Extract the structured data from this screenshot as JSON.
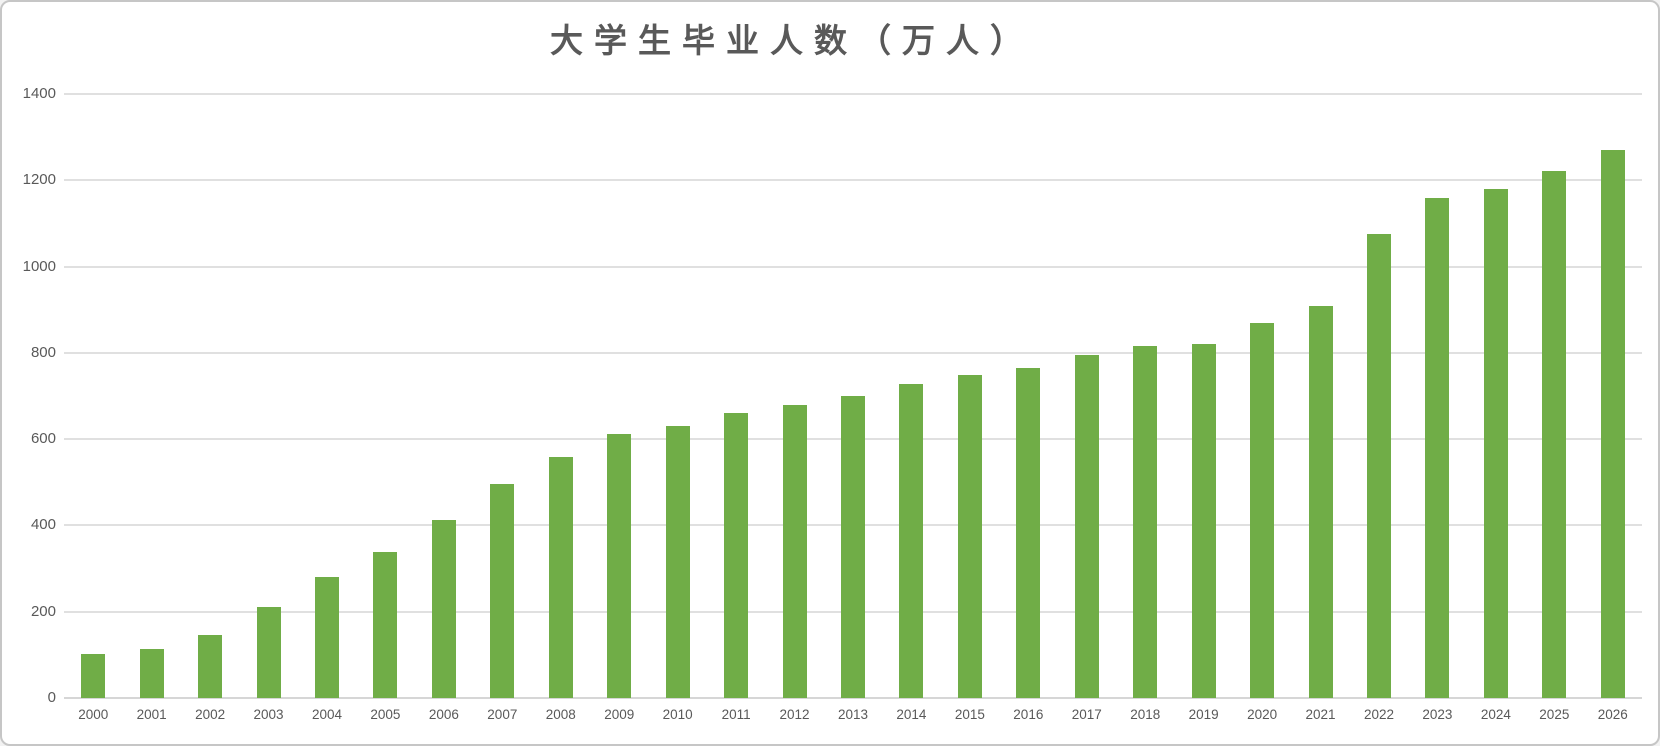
{
  "chart": {
    "title": "大学生毕业人数（万人）",
    "colors": {
      "bar": "#70AD47",
      "title_text": "#595959",
      "axis_label_text": "#595959",
      "gridline": "#E0E0E0",
      "axis_line": "#D6D6D6",
      "frame_border": "#C6C6C6",
      "background": "#FFFFFF"
    }
  },
  "chart_data": {
    "type": "bar",
    "title": "大学生毕业人数（万人）",
    "xlabel": "",
    "ylabel": "",
    "categories": [
      "2000",
      "2001",
      "2002",
      "2003",
      "2004",
      "2005",
      "2006",
      "2007",
      "2008",
      "2009",
      "2010",
      "2011",
      "2012",
      "2013",
      "2014",
      "2015",
      "2016",
      "2017",
      "2018",
      "2019",
      "2020",
      "2021",
      "2022",
      "2023",
      "2024",
      "2025",
      "2026"
    ],
    "values": [
      101,
      114,
      145,
      212,
      280,
      338,
      413,
      495,
      559,
      611,
      631,
      660,
      680,
      699,
      727,
      749,
      765,
      795,
      815,
      820,
      870,
      909,
      1076,
      1158,
      1179,
      1222,
      1270
    ],
    "series_name": "大学生毕业人数",
    "ylim": [
      0,
      1400
    ],
    "yticks": [
      0,
      200,
      400,
      600,
      800,
      1000,
      1200,
      1400
    ],
    "grid": true,
    "legend": false,
    "legend_position": "none",
    "bar_color": "#70AD47"
  }
}
